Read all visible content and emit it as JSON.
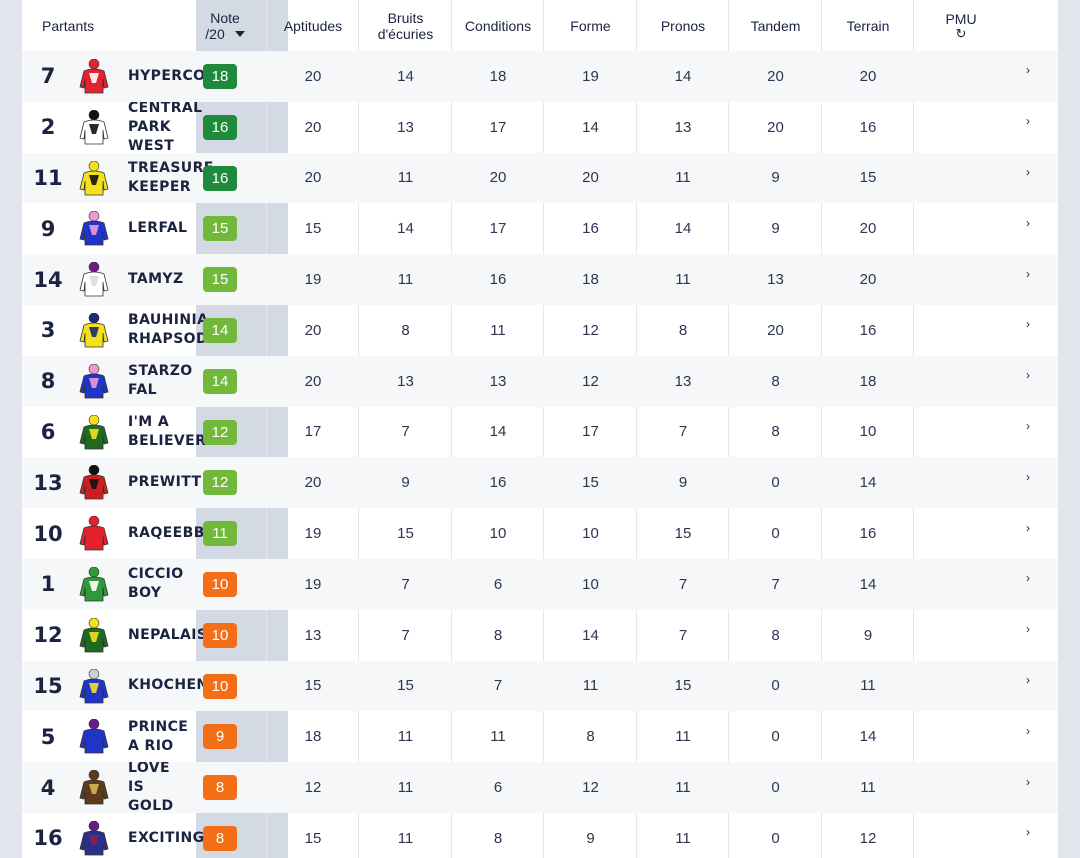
{
  "columns": {
    "partants": "Partants",
    "note_line1": "Note",
    "note_line2": "/20",
    "aptitudes": "Aptitudes",
    "bruits_line1": "Bruits",
    "bruits_line2": "d'écuries",
    "conditions": "Conditions",
    "forme": "Forme",
    "pronos": "Pronos",
    "tandem": "Tandem",
    "terrain": "Terrain",
    "pmu": "PMU",
    "refresh_icon": "↻",
    "sort_icon": "caret-down-icon"
  },
  "colors": {
    "dark_green": "#1f8a3b",
    "green": "#72b83a",
    "orange": "#f36e16"
  },
  "rows": [
    {
      "num": "7",
      "name": "HYPERCORE",
      "note": "18",
      "badge": "dark",
      "silk": "red-white-stripe",
      "aptitudes": "20",
      "bruits": "14",
      "conditions": "18",
      "forme": "19",
      "pronos": "14",
      "tandem": "20",
      "terrain": "20"
    },
    {
      "num": "2",
      "name": "CENTRAL\nPARK\nWEST",
      "note": "16",
      "badge": "dark",
      "silk": "white-black",
      "aptitudes": "20",
      "bruits": "13",
      "conditions": "17",
      "forme": "14",
      "pronos": "13",
      "tandem": "20",
      "terrain": "16"
    },
    {
      "num": "11",
      "name": "TREASURE\nKEEPER",
      "note": "16",
      "badge": "dark",
      "silk": "yellow-black-spots",
      "aptitudes": "20",
      "bruits": "11",
      "conditions": "20",
      "forme": "20",
      "pronos": "11",
      "tandem": "9",
      "terrain": "15"
    },
    {
      "num": "9",
      "name": "LERFAL",
      "note": "15",
      "badge": "green",
      "silk": "blue-pink-diamond",
      "aptitudes": "15",
      "bruits": "14",
      "conditions": "17",
      "forme": "16",
      "pronos": "14",
      "tandem": "9",
      "terrain": "20"
    },
    {
      "num": "14",
      "name": "TAMYZ",
      "note": "15",
      "badge": "green",
      "silk": "white-purple-cap",
      "aptitudes": "19",
      "bruits": "11",
      "conditions": "16",
      "forme": "18",
      "pronos": "11",
      "tandem": "13",
      "terrain": "20"
    },
    {
      "num": "3",
      "name": "BAUHINIA\nRHAPSODY",
      "note": "14",
      "badge": "green",
      "silk": "yellow-navy-chevron",
      "aptitudes": "20",
      "bruits": "8",
      "conditions": "11",
      "forme": "12",
      "pronos": "8",
      "tandem": "20",
      "terrain": "16"
    },
    {
      "num": "8",
      "name": "STARZO\nFAL",
      "note": "14",
      "badge": "green",
      "silk": "blue-pink-diamond",
      "aptitudes": "20",
      "bruits": "13",
      "conditions": "13",
      "forme": "12",
      "pronos": "13",
      "tandem": "8",
      "terrain": "18"
    },
    {
      "num": "6",
      "name": "I'M A\nBELIEVER",
      "note": "12",
      "badge": "green",
      "silk": "green-yellow",
      "aptitudes": "17",
      "bruits": "7",
      "conditions": "14",
      "forme": "17",
      "pronos": "7",
      "tandem": "8",
      "terrain": "10"
    },
    {
      "num": "13",
      "name": "PREWITT",
      "note": "12",
      "badge": "green",
      "silk": "red-black",
      "aptitudes": "20",
      "bruits": "9",
      "conditions": "16",
      "forme": "15",
      "pronos": "9",
      "tandem": "0",
      "terrain": "14"
    },
    {
      "num": "10",
      "name": "RAQEEBB",
      "note": "11",
      "badge": "green",
      "silk": "red",
      "aptitudes": "19",
      "bruits": "15",
      "conditions": "10",
      "forme": "10",
      "pronos": "15",
      "tandem": "0",
      "terrain": "16"
    },
    {
      "num": "1",
      "name": "CICCIO\nBOY",
      "note": "10",
      "badge": "orange",
      "silk": "green-white",
      "aptitudes": "19",
      "bruits": "7",
      "conditions": "6",
      "forme": "10",
      "pronos": "7",
      "tandem": "7",
      "terrain": "14"
    },
    {
      "num": "12",
      "name": "NEPALAIS",
      "note": "10",
      "badge": "orange",
      "silk": "green-yellow",
      "aptitudes": "13",
      "bruits": "7",
      "conditions": "8",
      "forme": "14",
      "pronos": "7",
      "tandem": "8",
      "terrain": "9"
    },
    {
      "num": "15",
      "name": "KHOCHENKO",
      "note": "10",
      "badge": "orange",
      "silk": "blue-yellow",
      "aptitudes": "15",
      "bruits": "15",
      "conditions": "7",
      "forme": "11",
      "pronos": "15",
      "tandem": "0",
      "terrain": "11"
    },
    {
      "num": "5",
      "name": "PRINCE\nA RIO",
      "note": "9",
      "badge": "orange",
      "silk": "blue-purple-cap",
      "aptitudes": "18",
      "bruits": "11",
      "conditions": "11",
      "forme": "8",
      "pronos": "11",
      "tandem": "0",
      "terrain": "14"
    },
    {
      "num": "4",
      "name": "LOVE\nIS\nGOLD",
      "note": "8",
      "badge": "orange",
      "silk": "brown-gold-check",
      "aptitudes": "12",
      "bruits": "11",
      "conditions": "6",
      "forme": "12",
      "pronos": "11",
      "tandem": "0",
      "terrain": "11"
    },
    {
      "num": "16",
      "name": "EXCITING",
      "note": "8",
      "badge": "orange",
      "silk": "navy-purple",
      "aptitudes": "15",
      "bruits": "11",
      "conditions": "8",
      "forme": "9",
      "pronos": "11",
      "tandem": "0",
      "terrain": "12"
    }
  ]
}
